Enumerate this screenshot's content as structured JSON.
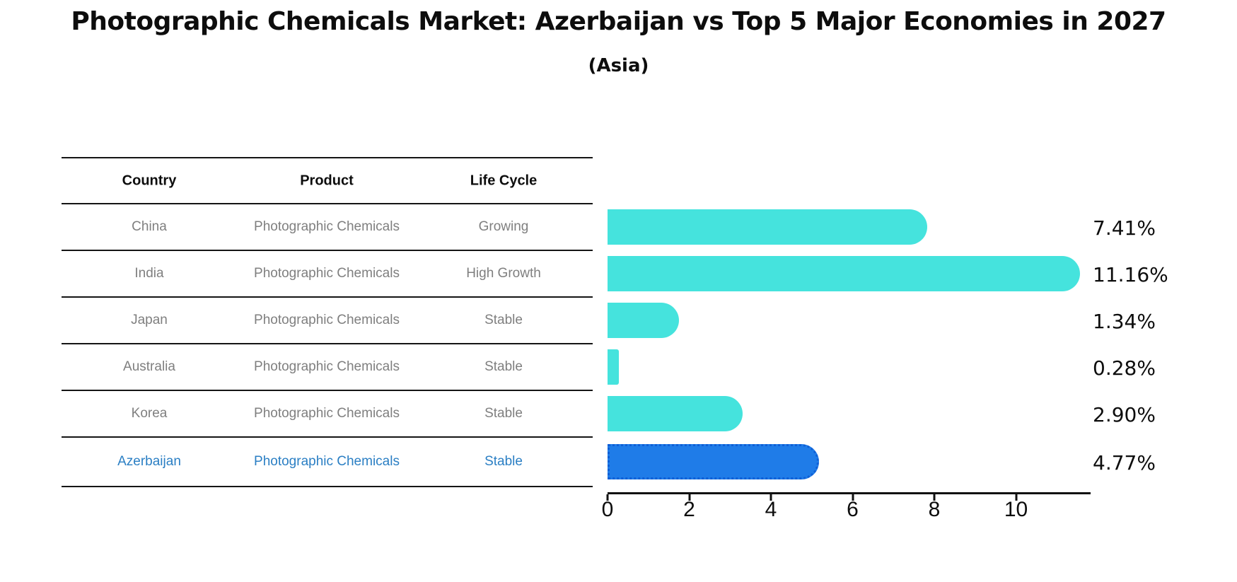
{
  "chart_data": {
    "type": "bar",
    "orientation": "horizontal",
    "title": "Photographic Chemicals Market: Azerbaijan vs Top 5 Major Economies in 2027",
    "subtitle": "(Asia)",
    "xlabel": "",
    "ylabel": "",
    "xlim": [
      0,
      11.83
    ],
    "x_ticks": [
      0,
      2,
      4,
      6,
      8,
      10
    ],
    "grid": false,
    "legend": false,
    "table_headers": [
      "Country",
      "Product",
      "Life Cycle"
    ],
    "rows": [
      {
        "country": "China",
        "product": "Photographic Chemicals",
        "life_cycle": "Growing",
        "value": 7.41,
        "label": "7.41%",
        "highlight": false
      },
      {
        "country": "India",
        "product": "Photographic Chemicals",
        "life_cycle": "High Growth",
        "value": 11.16,
        "label": "11.16%",
        "highlight": false
      },
      {
        "country": "Japan",
        "product": "Photographic Chemicals",
        "life_cycle": "Stable",
        "value": 1.34,
        "label": "1.34%",
        "highlight": false
      },
      {
        "country": "Australia",
        "product": "Photographic Chemicals",
        "life_cycle": "Stable",
        "value": 0.28,
        "label": "0.28%",
        "highlight": false
      },
      {
        "country": "Korea",
        "product": "Photographic Chemicals",
        "life_cycle": "Stable",
        "value": 2.9,
        "label": "2.90%",
        "highlight": false
      },
      {
        "country": "Azerbaijan",
        "product": "Photographic Chemicals",
        "life_cycle": "Stable",
        "value": 4.77,
        "label": "4.77%",
        "highlight": true
      }
    ],
    "colors": {
      "bar": "#45E3DD",
      "highlight_bar": "#1F7CE8",
      "highlight_bar_border": "#0F5FD6",
      "highlight_text": "#2B7FC4",
      "row_text": "#7F7F7F",
      "header_text": "#0D0D0D",
      "axis": "#111111",
      "background": "#FFFFFF"
    }
  }
}
